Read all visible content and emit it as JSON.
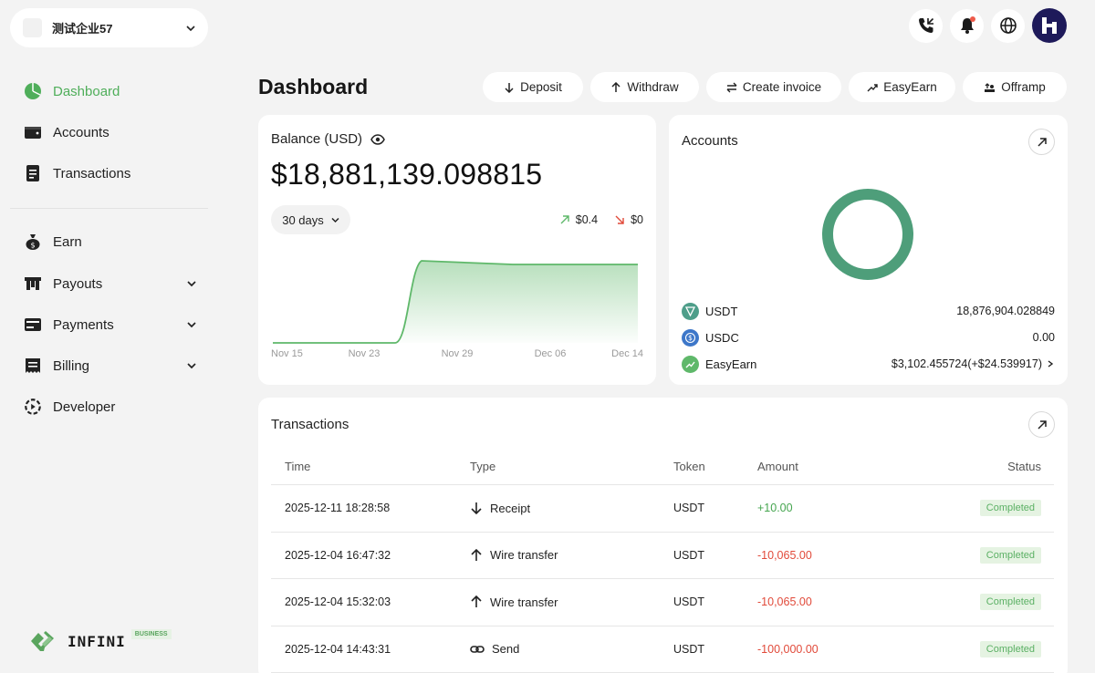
{
  "org": {
    "name": "测试企业57"
  },
  "sidebar": {
    "items": [
      {
        "label": "Dashboard"
      },
      {
        "label": "Accounts"
      },
      {
        "label": "Transactions"
      },
      {
        "label": "Earn"
      },
      {
        "label": "Payouts"
      },
      {
        "label": "Payments"
      },
      {
        "label": "Billing"
      },
      {
        "label": "Developer"
      }
    ]
  },
  "brand": {
    "name": "INFINI",
    "badge": "BUSINESS"
  },
  "page": {
    "title": "Dashboard"
  },
  "actions": {
    "deposit": "Deposit",
    "withdraw": "Withdraw",
    "invoice": "Create invoice",
    "easyearn": "EasyEarn",
    "offramp": "Offramp"
  },
  "balance": {
    "label": "Balance (USD)",
    "value": "$18,881,139.098815",
    "period": "30 days",
    "up": "$0.4",
    "down": "$0"
  },
  "accounts": {
    "title": "Accounts",
    "items": [
      {
        "name": "USDT",
        "amount": "18,876,904.028849"
      },
      {
        "name": "USDC",
        "amount": "0.00"
      },
      {
        "name": "EasyEarn",
        "amount": "$3,102.455724",
        "gain": "(+$24.539917)"
      }
    ]
  },
  "transactions": {
    "title": "Transactions",
    "headers": {
      "time": "Time",
      "type": "Type",
      "token": "Token",
      "amount": "Amount",
      "status": "Status"
    },
    "rows": [
      {
        "time": "2025-12-11 18:28:58",
        "type": "Receipt",
        "token": "USDT",
        "amount": "+10.00",
        "status": "Completed"
      },
      {
        "time": "2025-12-04 16:47:32",
        "type": "Wire transfer",
        "token": "USDT",
        "amount": "-10,065.00",
        "status": "Completed"
      },
      {
        "time": "2025-12-04 15:32:03",
        "type": "Wire transfer",
        "token": "USDT",
        "amount": "-10,065.00",
        "status": "Completed"
      },
      {
        "time": "2025-12-04 14:43:31",
        "type": "Send",
        "token": "USDT",
        "amount": "-100,000.00",
        "status": "Completed"
      }
    ]
  },
  "chart_data": {
    "type": "area",
    "x": [
      "Nov 15",
      "Nov 23",
      "Nov 29",
      "Dec 06",
      "Dec 14"
    ],
    "tick_labels": [
      "Nov 15",
      "Nov 23",
      "Nov 29",
      "Dec 06",
      "Dec 14"
    ],
    "color": "#5fb86a",
    "grid": false
  }
}
